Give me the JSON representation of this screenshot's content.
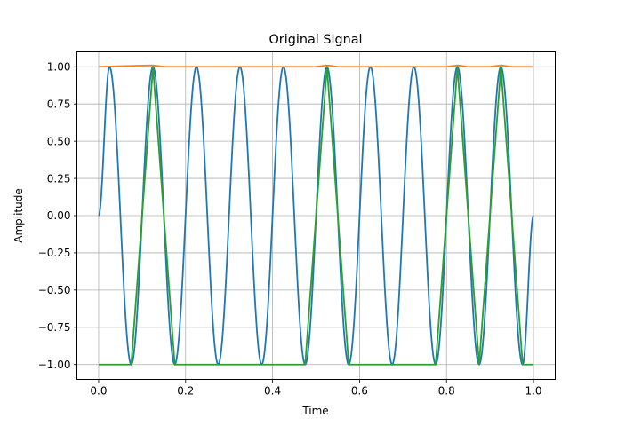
{
  "chart_data": {
    "type": "line",
    "title": "Original Signal",
    "xlabel": "Time",
    "ylabel": "Amplitude",
    "xlim": [
      -0.05,
      1.05
    ],
    "ylim": [
      -1.1,
      1.1
    ],
    "xticks": [
      0.0,
      0.2,
      0.4,
      0.6,
      0.8,
      1.0
    ],
    "xtick_labels": [
      "0.0",
      "0.2",
      "0.4",
      "0.6",
      "0.8",
      "1.0"
    ],
    "yticks": [
      -1.0,
      -0.75,
      -0.5,
      -0.25,
      0.0,
      0.25,
      0.5,
      0.75,
      1.0
    ],
    "ytick_labels": [
      "−1.00",
      "−0.75",
      "−0.50",
      "−0.25",
      "0.00",
      "0.25",
      "0.50",
      "0.75",
      "1.00"
    ],
    "grid": true,
    "series": [
      {
        "color": "#1f77b4",
        "x": [
          0.0,
          0.025,
          0.075,
          0.125,
          0.175,
          0.225,
          0.275,
          0.325,
          0.375,
          0.425,
          0.475,
          0.525,
          0.575,
          0.625,
          0.675,
          0.725,
          0.775,
          0.825,
          0.875,
          0.925,
          0.975,
          1.0
        ],
        "y": [
          0.0,
          1.0,
          -1.0,
          1.0,
          -1.0,
          1.0,
          -1.0,
          1.0,
          -1.0,
          1.0,
          -1.0,
          1.0,
          -1.0,
          1.0,
          -1.0,
          1.0,
          -1.0,
          1.0,
          -1.0,
          1.0,
          -1.0,
          0.0
        ],
        "note_shape": "sine"
      },
      {
        "color": "#ff7f0e",
        "x": [
          0.0,
          0.125,
          0.15,
          0.5,
          0.525,
          0.55,
          0.8,
          0.825,
          0.85,
          0.9,
          0.925,
          0.95,
          1.0
        ],
        "y": [
          1.0,
          1.01,
          1.0,
          1.0,
          1.01,
          1.0,
          1.0,
          1.01,
          1.0,
          1.0,
          1.01,
          1.0,
          1.0
        ]
      },
      {
        "color": "#2ca02c",
        "x": [
          0.0,
          0.075,
          0.125,
          0.175,
          0.475,
          0.525,
          0.575,
          0.775,
          0.825,
          0.875,
          0.925,
          0.975,
          1.0
        ],
        "y": [
          -1.0,
          -1.0,
          1.0,
          -1.0,
          -1.0,
          1.0,
          -1.0,
          -1.0,
          1.0,
          -1.0,
          1.0,
          -1.0,
          -1.0
        ]
      }
    ]
  }
}
